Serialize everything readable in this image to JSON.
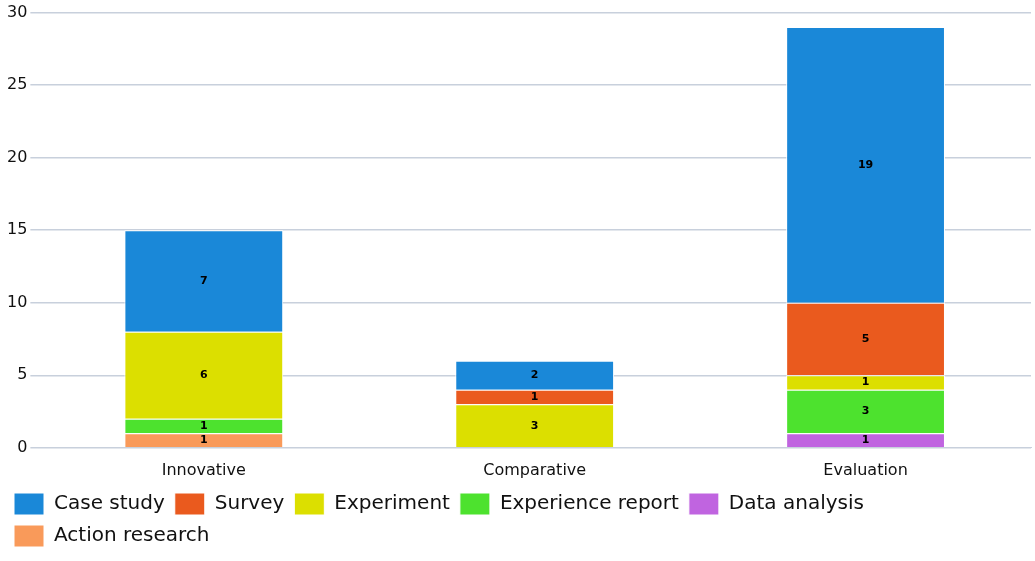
{
  "chart_data": {
    "type": "bar",
    "stacked": true,
    "categories": [
      "Innovative",
      "Comparative",
      "Evaluation"
    ],
    "series": [
      {
        "name": "Action research",
        "color": "#f99a5a",
        "values": [
          1,
          null,
          null
        ]
      },
      {
        "name": "Data analysis",
        "color": "#c064e0",
        "values": [
          null,
          null,
          1
        ]
      },
      {
        "name": "Experience report",
        "color": "#4de22e",
        "values": [
          1,
          null,
          3
        ]
      },
      {
        "name": "Experiment",
        "color": "#dcdf00",
        "values": [
          6,
          3,
          1
        ]
      },
      {
        "name": "Survey",
        "color": "#ea5a1e",
        "values": [
          null,
          1,
          5
        ]
      },
      {
        "name": "Case study",
        "color": "#1a88d8",
        "values": [
          7,
          2,
          19
        ]
      }
    ],
    "ylim": [
      0,
      30
    ],
    "yticks": [
      0,
      5,
      10,
      15,
      20,
      25,
      30
    ],
    "grid": "y",
    "legend": "bottom",
    "data_labels": true
  }
}
